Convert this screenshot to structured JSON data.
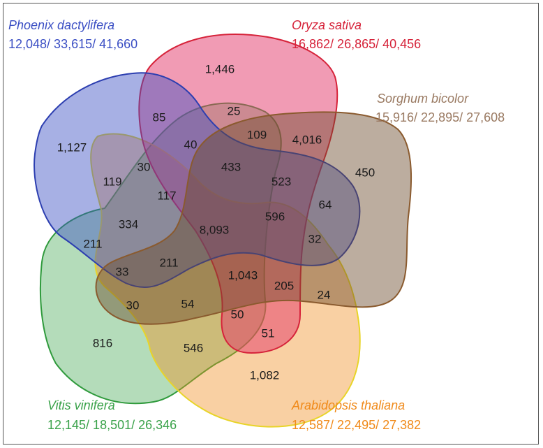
{
  "species": {
    "phoenix": {
      "name": "Phoenix dactylifera",
      "counts": "12,048/ 33,615/ 41,660",
      "color": "#3b4fc4"
    },
    "oryza": {
      "name": "Oryza sativa",
      "counts": "16,862/ 26,865/ 40,456",
      "color": "#d6233a"
    },
    "sorghum": {
      "name": "Sorghum bicolor",
      "counts": "15,916/ 22,895/ 27,608",
      "color": "#9a7a62"
    },
    "vitis": {
      "name": "Vitis vinifera",
      "counts": "12,145/ 18,501/ 26,346",
      "color": "#3aa24a"
    },
    "arabidopsis": {
      "name": "Arabidopsis thaliana",
      "counts": "12,587/ 22,495/ 27,382",
      "color": "#f08a1a"
    }
  },
  "regions": {
    "r1446": "1,446",
    "r85": "85",
    "r25": "25",
    "r1127": "1,127",
    "r40": "40",
    "r109": "109",
    "r4016": "4,016",
    "r30a": "30",
    "r433": "433",
    "r450": "450",
    "r119": "119",
    "r523": "523",
    "r117": "117",
    "r64": "64",
    "r334": "334",
    "r8093": "8,093",
    "r596": "596",
    "r211a": "211",
    "r32": "32",
    "r211b": "211",
    "r33": "33",
    "r1043": "1,043",
    "r205": "205",
    "r24": "24",
    "r30b": "30",
    "r54": "54",
    "r50": "50",
    "r51": "51",
    "r816": "816",
    "r546": "546",
    "r1082": "1,082"
  }
}
